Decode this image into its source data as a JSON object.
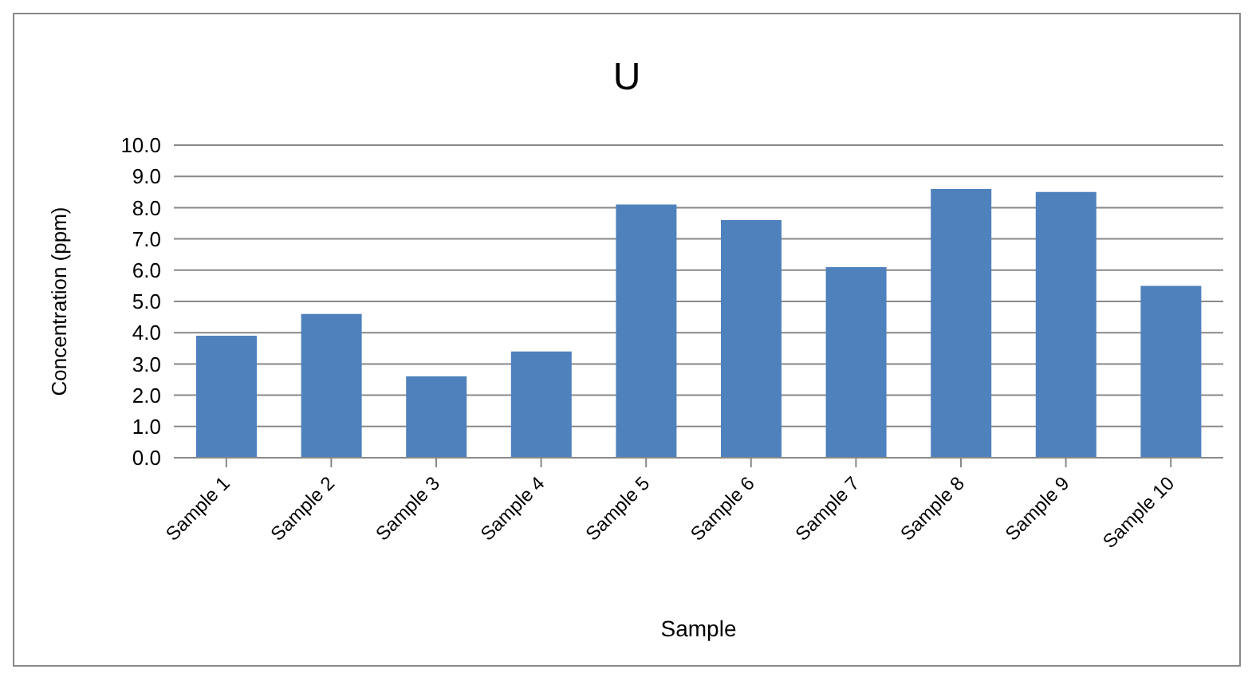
{
  "chart_data": {
    "type": "bar",
    "title": "U",
    "xlabel": "Sample",
    "ylabel": "Concentration (ppm)",
    "categories": [
      "Sample 1",
      "Sample 2",
      "Sample 3",
      "Sample 4",
      "Sample 5",
      "Sample 6",
      "Sample 7",
      "Sample 8",
      "Sample 9",
      "Sample 10"
    ],
    "values": [
      3.9,
      4.6,
      2.6,
      3.4,
      8.1,
      7.6,
      6.1,
      8.6,
      8.5,
      5.5
    ],
    "color": "#4f81bd",
    "ylim": [
      0,
      10
    ],
    "yticks": [
      {
        "value": 0,
        "label": "0.0"
      },
      {
        "value": 1,
        "label": "1.0"
      },
      {
        "value": 2,
        "label": "2.0"
      },
      {
        "value": 3,
        "label": "3.0"
      },
      {
        "value": 4,
        "label": "4.0"
      },
      {
        "value": 5,
        "label": "5.0"
      },
      {
        "value": 6,
        "label": "6.0"
      },
      {
        "value": 7,
        "label": "7.0"
      },
      {
        "value": 8,
        "label": "8.0"
      },
      {
        "value": 9,
        "label": "9.0"
      },
      {
        "value": 10,
        "label": "10.0"
      }
    ],
    "grid": "y"
  }
}
